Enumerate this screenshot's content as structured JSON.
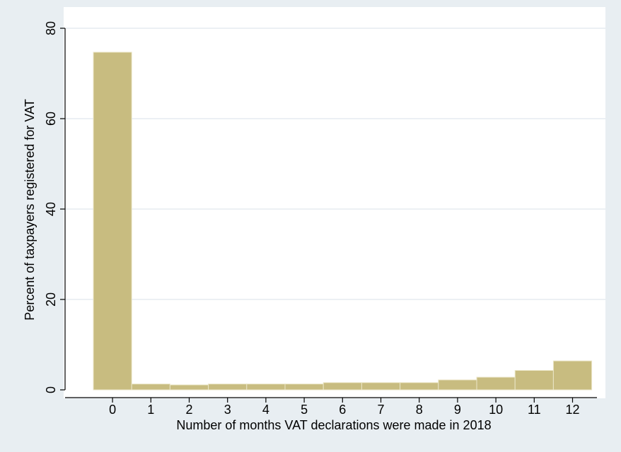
{
  "chart_data": {
    "type": "bar",
    "categories": [
      "0",
      "1",
      "2",
      "3",
      "4",
      "5",
      "6",
      "7",
      "8",
      "9",
      "10",
      "11",
      "12"
    ],
    "values": [
      74.7,
      1.3,
      1.1,
      1.3,
      1.3,
      1.3,
      1.6,
      1.6,
      1.6,
      2.2,
      2.8,
      4.3,
      6.4
    ],
    "title": "",
    "xlabel": "Number of months VAT declarations were made in 2018",
    "ylabel": "Percent of taxpayers registered for VAT",
    "ylim": [
      0,
      80
    ],
    "yticks": [
      0,
      20,
      40,
      60,
      80
    ],
    "grid": true,
    "legend": "none",
    "colors": {
      "bar_fill": "#c8bc80",
      "bar_stroke": "#ebe6c8",
      "plot_bg": "#ffffff",
      "outer_bg": "#e8eef2",
      "grid": "#e6ecf0",
      "axis": "#000000"
    }
  }
}
